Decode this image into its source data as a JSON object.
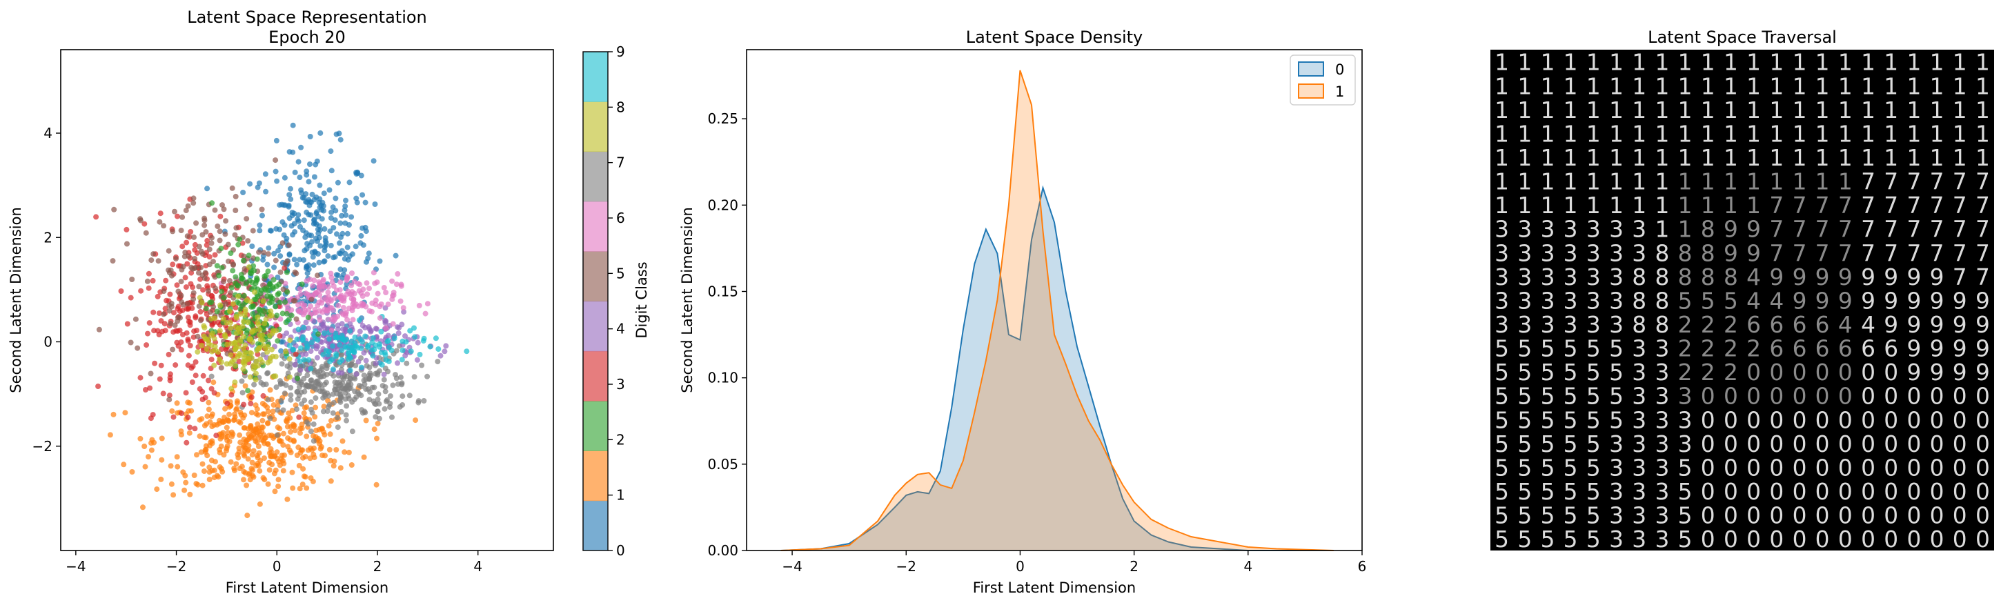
{
  "chart_data": [
    {
      "type": "scatter",
      "title": "Latent Space Representation",
      "subtitle": "Epoch 20",
      "xlabel": "First Latent Dimension",
      "ylabel": "Second Latent Dimension",
      "xlim": [
        -4.3,
        5.5
      ],
      "ylim": [
        -4.0,
        5.6
      ],
      "xticks": [
        -4,
        -2,
        0,
        2,
        4
      ],
      "yticks": [
        -2,
        0,
        2,
        4
      ],
      "tick_labels_x": [
        "−4",
        "−2",
        "0",
        "2",
        "4"
      ],
      "tick_labels_y": [
        "−2",
        "0",
        "2",
        "4"
      ],
      "colorbar": {
        "label": "Digit Class",
        "ticks": [
          "0",
          "1",
          "2",
          "3",
          "4",
          "5",
          "6",
          "7",
          "8",
          "9"
        ],
        "colors": [
          "#1f77b4",
          "#ff7f0e",
          "#2ca02c",
          "#d62728",
          "#9467bd",
          "#8c564b",
          "#e377c2",
          "#7f7f7f",
          "#bcbd22",
          "#17becf"
        ]
      },
      "clusters": [
        {
          "digit": 0,
          "center": [
            0.7,
            1.9
          ],
          "spread": [
            0.6,
            0.9
          ],
          "n": 320
        },
        {
          "digit": 1,
          "center": [
            -0.4,
            -1.9
          ],
          "spread": [
            1.0,
            0.5
          ],
          "n": 420
        },
        {
          "digit": 2,
          "center": [
            -0.5,
            0.7
          ],
          "spread": [
            0.4,
            0.55
          ],
          "n": 160
        },
        {
          "digit": 3,
          "center": [
            -1.4,
            0.5
          ],
          "spread": [
            0.65,
            0.9
          ],
          "n": 300
        },
        {
          "digit": 4,
          "center": [
            1.3,
            0.0
          ],
          "spread": [
            0.75,
            0.25
          ],
          "n": 230
        },
        {
          "digit": 5,
          "center": [
            -1.3,
            1.3
          ],
          "spread": [
            0.8,
            0.8
          ],
          "n": 200
        },
        {
          "digit": 6,
          "center": [
            1.0,
            0.8
          ],
          "spread": [
            0.7,
            0.25
          ],
          "n": 200
        },
        {
          "digit": 7,
          "center": [
            1.1,
            -0.8
          ],
          "spread": [
            0.8,
            0.35
          ],
          "n": 320
        },
        {
          "digit": 8,
          "center": [
            -0.7,
            0.0
          ],
          "spread": [
            0.4,
            0.4
          ],
          "n": 150
        },
        {
          "digit": 9,
          "center": [
            1.4,
            -0.1
          ],
          "spread": [
            0.8,
            0.2
          ],
          "n": 120
        }
      ]
    },
    {
      "type": "area",
      "title": "Latent Space Density",
      "xlabel": "First Latent Dimension",
      "ylabel": "Second Latent Dimension",
      "xlim": [
        -4.8,
        6.0
      ],
      "ylim": [
        0,
        0.29
      ],
      "xticks": [
        -4,
        -2,
        0,
        2,
        4,
        6
      ],
      "yticks": [
        0.0,
        0.05,
        0.1,
        0.15,
        0.2,
        0.25
      ],
      "tick_labels_x": [
        "−4",
        "−2",
        "0",
        "2",
        "4",
        "6"
      ],
      "tick_labels_y": [
        "0.00",
        "0.05",
        "0.10",
        "0.15",
        "0.20",
        "0.25"
      ],
      "x": [
        -4.2,
        -3.5,
        -3.0,
        -2.5,
        -2.2,
        -2.0,
        -1.8,
        -1.6,
        -1.4,
        -1.2,
        -1.0,
        -0.8,
        -0.6,
        -0.4,
        -0.2,
        0.0,
        0.2,
        0.4,
        0.6,
        0.8,
        1.0,
        1.2,
        1.4,
        1.6,
        1.8,
        2.0,
        2.3,
        2.6,
        3.0,
        3.5,
        4.0,
        4.5,
        5.0,
        5.5
      ],
      "series": [
        {
          "name": "0",
          "color": "#1f77b4",
          "values": [
            0.0,
            0.001,
            0.004,
            0.015,
            0.025,
            0.032,
            0.034,
            0.033,
            0.046,
            0.083,
            0.128,
            0.166,
            0.186,
            0.172,
            0.125,
            0.122,
            0.18,
            0.21,
            0.19,
            0.15,
            0.118,
            0.095,
            0.072,
            0.05,
            0.03,
            0.017,
            0.009,
            0.005,
            0.002,
            0.001,
            0.0,
            0.0,
            0.0,
            0.0
          ]
        },
        {
          "name": "1",
          "color": "#ff7f0e",
          "values": [
            0.0,
            0.001,
            0.003,
            0.017,
            0.032,
            0.039,
            0.044,
            0.045,
            0.038,
            0.036,
            0.052,
            0.08,
            0.11,
            0.145,
            0.2,
            0.278,
            0.258,
            0.185,
            0.125,
            0.108,
            0.09,
            0.075,
            0.064,
            0.05,
            0.038,
            0.028,
            0.018,
            0.013,
            0.008,
            0.005,
            0.002,
            0.001,
            0.0005,
            0.0
          ]
        }
      ],
      "legend_position": "top-right"
    },
    {
      "type": "image-grid",
      "title": "Latent Space Traversal",
      "rows": [
        "1111111111111111111111",
        "1111111111111111111111",
        "1111111111111111111111",
        "1111111111111111111111",
        "1111111111111111111111",
        "1111111111111111777777",
        "1111111111117777777777",
        "3333333118997777777777",
        "3333333888997777777777",
        "3333338888849999999977",
        "3333338855544999999999",
        "3333338822266664499999",
        "5555553322226666669999",
        "5555553322200000009999",
        "5555553330000000000000",
        "5555553330000000000000",
        "5555533330000000000000",
        "5555533350000000000000",
        "5555533350000000000000",
        "5555533350000000000000",
        "5555533350000000000000"
      ]
    }
  ]
}
